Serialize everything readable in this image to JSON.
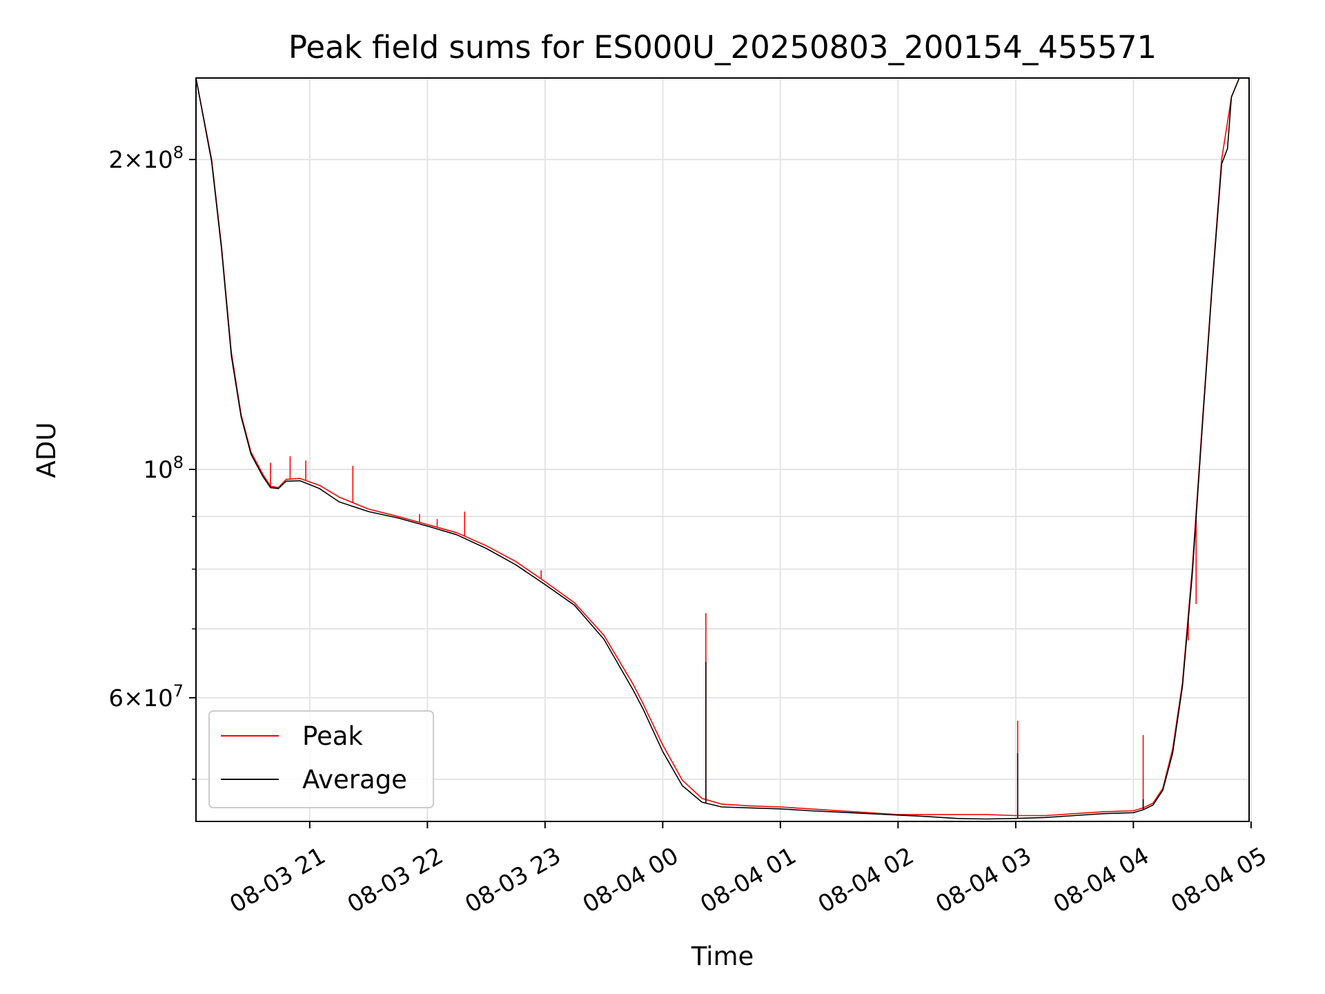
{
  "chart_data": {
    "type": "line",
    "title": "Peak field sums for ES000U_20250803_200154_455571",
    "xlabel": "Time",
    "ylabel": "ADU",
    "y_scale": "log",
    "ylim": [
      45500000,
      240000000
    ],
    "xlim": [
      "08-03 20:02",
      "08-04 04:59"
    ],
    "grid": true,
    "legend_position": "lower-left",
    "x_ticks": [
      {
        "t": "08-03 21:00",
        "label": "08-03 21"
      },
      {
        "t": "08-03 22:00",
        "label": "08-03 22"
      },
      {
        "t": "08-03 23:00",
        "label": "08-03 23"
      },
      {
        "t": "08-04 00:00",
        "label": "08-04 00"
      },
      {
        "t": "08-04 01:00",
        "label": "08-04 01"
      },
      {
        "t": "08-04 02:00",
        "label": "08-04 02"
      },
      {
        "t": "08-04 03:00",
        "label": "08-04 03"
      },
      {
        "t": "08-04 04:00",
        "label": "08-04 04"
      },
      {
        "t": "08-04 05:00",
        "label": "08-04 05"
      }
    ],
    "y_ticks": [
      {
        "value": 200000000,
        "base": "2×10",
        "exp": "8"
      },
      {
        "value": 100000000,
        "base": "10",
        "exp": "8"
      },
      {
        "value": 60000000,
        "base": "6×10",
        "exp": "7"
      }
    ],
    "y_minor_ticks": [
      50000000,
      70000000,
      80000000,
      90000000
    ],
    "series": [
      {
        "name": "Peak",
        "color": "#ff0000",
        "points": [
          [
            "08-03 20:02",
            240000000
          ],
          [
            "08-03 20:10",
            200000000
          ],
          [
            "08-03 20:15",
            165000000
          ],
          [
            "08-03 20:20",
            130000000
          ],
          [
            "08-03 20:25",
            113000000
          ],
          [
            "08-03 20:30",
            104000000
          ],
          [
            "08-03 20:36",
            99000000
          ],
          [
            "08-03 20:40",
            96300000
          ],
          [
            "08-03 20:44",
            96000000
          ],
          [
            "08-03 20:48",
            97800000
          ],
          [
            "08-03 20:55",
            98000000
          ],
          [
            "08-03 21:05",
            96500000
          ],
          [
            "08-03 21:15",
            94000000
          ],
          [
            "08-03 21:30",
            91500000
          ],
          [
            "08-03 21:45",
            90000000
          ],
          [
            "08-03 22:00",
            88400000
          ],
          [
            "08-03 22:15",
            86800000
          ],
          [
            "08-03 22:30",
            84300000
          ],
          [
            "08-03 22:45",
            81400000
          ],
          [
            "08-03 23:00",
            77800000
          ],
          [
            "08-03 23:15",
            74200000
          ],
          [
            "08-03 23:30",
            69000000
          ],
          [
            "08-03 23:45",
            61800000
          ],
          [
            "08-03 23:50",
            59200000
          ],
          [
            "08-04 00:00",
            54000000
          ],
          [
            "08-04 00:10",
            49900000
          ],
          [
            "08-04 00:20",
            47900000
          ],
          [
            "08-04 00:30",
            47300000
          ],
          [
            "08-04 00:45",
            47100000
          ],
          [
            "08-04 01:00",
            47000000
          ],
          [
            "08-04 01:15",
            46800000
          ],
          [
            "08-04 01:30",
            46600000
          ],
          [
            "08-04 01:45",
            46400000
          ],
          [
            "08-04 02:00",
            46200000
          ],
          [
            "08-04 02:15",
            46200000
          ],
          [
            "08-04 02:30",
            46200000
          ],
          [
            "08-04 02:45",
            46200000
          ],
          [
            "08-04 03:00",
            46100000
          ],
          [
            "08-04 03:15",
            46100000
          ],
          [
            "08-04 03:30",
            46300000
          ],
          [
            "08-04 03:45",
            46500000
          ],
          [
            "08-04 04:00",
            46600000
          ],
          [
            "08-04 04:05",
            46900000
          ],
          [
            "08-04 04:10",
            47400000
          ],
          [
            "08-04 04:15",
            49000000
          ],
          [
            "08-04 04:20",
            53500000
          ],
          [
            "08-04 04:25",
            62000000
          ],
          [
            "08-04 04:30",
            80000000
          ],
          [
            "08-04 04:35",
            110000000
          ],
          [
            "08-04 04:40",
            150000000
          ],
          [
            "08-04 04:45",
            200000000
          ],
          [
            "08-04 04:50",
            230000000
          ],
          [
            "08-04 04:54",
            240000000
          ]
        ],
        "spikes": [
          [
            "08-03 20:40",
            101500000
          ],
          [
            "08-03 20:50",
            103000000
          ],
          [
            "08-03 20:58",
            102000000
          ],
          [
            "08-03 21:22",
            100800000
          ],
          [
            "08-03 21:56",
            90500000
          ],
          [
            "08-03 22:05",
            89500000
          ],
          [
            "08-03 22:19",
            91000000
          ],
          [
            "08-03 22:58",
            79800000
          ],
          [
            "08-04 00:22",
            72500000
          ],
          [
            "08-04 03:01",
            57000000
          ],
          [
            "08-04 04:05",
            55200000
          ],
          [
            "08-04 04:28",
            68200000
          ],
          [
            "08-04 04:32",
            74000000
          ]
        ]
      },
      {
        "name": "Average",
        "color": "#000000",
        "points": [
          [
            "08-03 20:02",
            240000000
          ],
          [
            "08-03 20:10",
            199000000
          ],
          [
            "08-03 20:15",
            164000000
          ],
          [
            "08-03 20:20",
            129000000
          ],
          [
            "08-03 20:25",
            112500000
          ],
          [
            "08-03 20:30",
            103500000
          ],
          [
            "08-03 20:36",
            98500000
          ],
          [
            "08-03 20:40",
            96000000
          ],
          [
            "08-03 20:44",
            95800000
          ],
          [
            "08-03 20:48",
            97400000
          ],
          [
            "08-03 20:55",
            97500000
          ],
          [
            "08-03 21:05",
            95800000
          ],
          [
            "08-03 21:15",
            93000000
          ],
          [
            "08-03 21:30",
            91000000
          ],
          [
            "08-03 21:45",
            89700000
          ],
          [
            "08-03 22:00",
            88100000
          ],
          [
            "08-03 22:15",
            86400000
          ],
          [
            "08-03 22:30",
            83800000
          ],
          [
            "08-03 22:45",
            80800000
          ],
          [
            "08-03 23:00",
            77300000
          ],
          [
            "08-03 23:15",
            73800000
          ],
          [
            "08-03 23:30",
            68400000
          ],
          [
            "08-03 23:45",
            61000000
          ],
          [
            "08-03 23:50",
            58500000
          ],
          [
            "08-04 00:00",
            53200000
          ],
          [
            "08-04 00:10",
            49300000
          ],
          [
            "08-04 00:20",
            47500000
          ],
          [
            "08-04 00:30",
            47000000
          ],
          [
            "08-04 00:45",
            46900000
          ],
          [
            "08-04 01:00",
            46800000
          ],
          [
            "08-04 01:15",
            46600000
          ],
          [
            "08-04 01:30",
            46450000
          ],
          [
            "08-04 01:45",
            46300000
          ],
          [
            "08-04 02:00",
            46150000
          ],
          [
            "08-04 02:15",
            46000000
          ],
          [
            "08-04 02:30",
            45800000
          ],
          [
            "08-04 02:45",
            45750000
          ],
          [
            "08-04 03:00",
            45800000
          ],
          [
            "08-04 03:15",
            45900000
          ],
          [
            "08-04 03:30",
            46100000
          ],
          [
            "08-04 03:45",
            46300000
          ],
          [
            "08-04 04:00",
            46400000
          ],
          [
            "08-04 04:05",
            46700000
          ],
          [
            "08-04 04:10",
            47200000
          ],
          [
            "08-04 04:15",
            48800000
          ],
          [
            "08-04 04:20",
            53000000
          ],
          [
            "08-04 04:25",
            61500000
          ],
          [
            "08-04 04:30",
            79000000
          ],
          [
            "08-04 04:35",
            109000000
          ],
          [
            "08-04 04:40",
            149000000
          ],
          [
            "08-04 04:45",
            198000000
          ],
          [
            "08-04 04:48",
            205000000
          ],
          [
            "08-04 04:50",
            230000000
          ],
          [
            "08-04 04:54",
            240000000
          ]
        ],
        "spikes": [
          [
            "08-04 00:22",
            65000000
          ],
          [
            "08-04 03:01",
            53000000
          ],
          [
            "08-04 04:05",
            47800000
          ]
        ]
      }
    ]
  }
}
